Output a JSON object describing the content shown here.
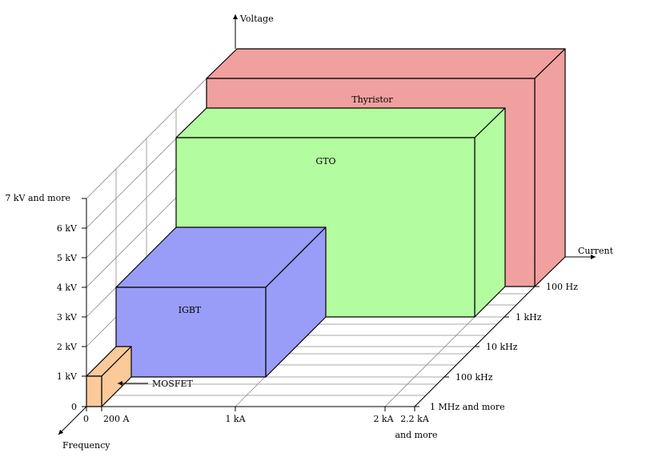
{
  "axes": {
    "voltage_label": "Voltage",
    "current_label": "Current",
    "frequency_label": "Frequency"
  },
  "voltage_ticks": [
    "0",
    "1 kV",
    "2 kV",
    "3 kV",
    "4 kV",
    "5 kV",
    "6 kV",
    "7 kV and more"
  ],
  "current_ticks": {
    "zero": "0",
    "a200": "200 A",
    "ka1": "1 kA",
    "ka2": "2 kA",
    "ka22_line1": "2.2 kA",
    "ka22_line2": "and more"
  },
  "frequency_ticks": [
    "100 Hz",
    "1 kHz",
    "10 kHz",
    "100 kHz",
    "1 MHz and more"
  ],
  "devices": {
    "thyristor": {
      "label": "Thyristor",
      "color": "#f0a09e"
    },
    "gto": {
      "label": "GTO",
      "color": "#b3fca0"
    },
    "igbt": {
      "label": "IGBT",
      "color": "#9a9df8"
    },
    "mosfet": {
      "label": "MOSFET",
      "color": "#fbc99a"
    }
  }
}
